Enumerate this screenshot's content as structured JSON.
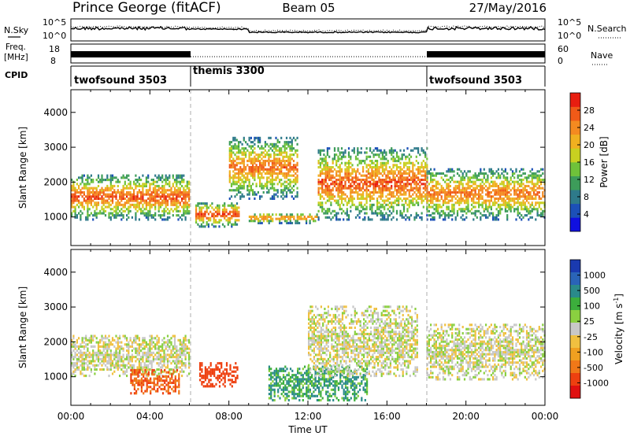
{
  "title": {
    "left": "Prince George (fitACF)",
    "center": "Beam 05",
    "right": "27/May/2016"
  },
  "noise_panel": {
    "left_label": "N.Sky",
    "right_label": "N.Search",
    "left_ticks": [
      "10^5",
      "10^0"
    ],
    "right_ticks": [
      "10^5",
      "10^0"
    ]
  },
  "freq_panel": {
    "left_label_1": "Freq.",
    "left_label_2": "[MHz]",
    "left_ticks": [
      "18",
      "8"
    ],
    "right_label": "Nave",
    "right_ticks": [
      "60",
      "0"
    ]
  },
  "cpid_panel": {
    "label": "CPID",
    "segments": [
      {
        "name": "twofsound 3503",
        "start_hour": 0,
        "end_hour": 6
      },
      {
        "name": "themis 3300",
        "start_hour": 6,
        "end_hour": 18
      },
      {
        "name": "twofsound 3503",
        "start_hour": 18,
        "end_hour": 24
      }
    ]
  },
  "x_axis": {
    "label": "Time UT",
    "ticks": [
      "00:00",
      "04:00",
      "08:00",
      "12:00",
      "16:00",
      "20:00",
      "00:00"
    ],
    "range_hours": [
      0,
      24
    ]
  },
  "y_axis": {
    "label": "Slant Range [km]",
    "ticks": [
      "1000",
      "2000",
      "3000",
      "4000"
    ],
    "range_km": [
      180,
      4650
    ]
  },
  "power_colorbar": {
    "label": "Power [dB]",
    "ticks": [
      "4",
      "8",
      "12",
      "16",
      "20",
      "24",
      "28"
    ],
    "colors": [
      "#1010e0",
      "#1c50b8",
      "#2e7a8a",
      "#3d9c5a",
      "#6fc23a",
      "#c8d020",
      "#f0b020",
      "#f48a20",
      "#f05a18",
      "#e81e10"
    ]
  },
  "velocity_colorbar": {
    "label": "Velocity [m s^-1]",
    "ticks": [
      "1000",
      "500",
      "100",
      "25",
      "-25",
      "-100",
      "-500",
      "-1000"
    ],
    "colors": [
      "#1a3ab0",
      "#2a64b8",
      "#2a8a8a",
      "#3cae3c",
      "#8ad040",
      "#c8c8c8",
      "#f0c040",
      "#f0a020",
      "#f07818",
      "#ee4010",
      "#e01010"
    ]
  },
  "chart_data": [
    {
      "type": "heatmap",
      "panel": "power",
      "xlabel": "Time UT",
      "ylabel": "Slant Range [km]",
      "colorbar_label": "Power [dB]",
      "xlim_hours": [
        0,
        24
      ],
      "ylim_km": [
        180,
        4650
      ],
      "regions": [
        {
          "t_start": 0.0,
          "t_end": 6.0,
          "r_min": 900,
          "r_max": 2200,
          "power_peak_db": 28
        },
        {
          "t_start": 6.3,
          "t_end": 8.5,
          "r_min": 700,
          "r_max": 1400,
          "power_peak_db": 30
        },
        {
          "t_start": 8.0,
          "t_end": 11.5,
          "r_min": 1500,
          "r_max": 3300,
          "power_peak_db": 26
        },
        {
          "t_start": 9.0,
          "t_end": 12.5,
          "r_min": 800,
          "r_max": 1100,
          "power_peak_db": 26
        },
        {
          "t_start": 12.5,
          "t_end": 18.0,
          "r_min": 900,
          "r_max": 3000,
          "power_peak_db": 28
        },
        {
          "t_start": 18.0,
          "t_end": 24.0,
          "r_min": 900,
          "r_max": 2400,
          "power_peak_db": 26
        }
      ]
    },
    {
      "type": "heatmap",
      "panel": "velocity",
      "xlabel": "Time UT",
      "ylabel": "Slant Range [km]",
      "colorbar_label": "Velocity [m s^-1]",
      "xlim_hours": [
        0,
        24
      ],
      "ylim_km": [
        180,
        4650
      ],
      "regions": [
        {
          "t_start": 0.0,
          "t_end": 6.0,
          "r_min": 1000,
          "r_max": 2200,
          "velocity_ms": 0
        },
        {
          "t_start": 3.0,
          "t_end": 5.5,
          "r_min": 500,
          "r_max": 1200,
          "velocity_ms": -300
        },
        {
          "t_start": 6.5,
          "t_end": 8.4,
          "r_min": 700,
          "r_max": 1400,
          "velocity_ms": -400
        },
        {
          "t_start": 10.0,
          "t_end": 15.0,
          "r_min": 300,
          "r_max": 1300,
          "velocity_ms": 100
        },
        {
          "t_start": 12.0,
          "t_end": 17.5,
          "r_min": 1000,
          "r_max": 3000,
          "velocity_ms": 0
        },
        {
          "t_start": 18.0,
          "t_end": 24.0,
          "r_min": 900,
          "r_max": 2500,
          "velocity_ms": 0
        }
      ]
    }
  ]
}
